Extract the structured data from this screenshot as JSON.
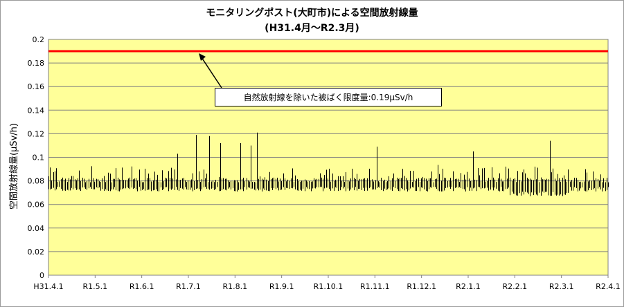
{
  "chart_data": {
    "type": "line",
    "title": "モニタリングポスト(大町市)による空間放射線量",
    "subtitle": "(H31.4月～R2.3月)",
    "ylabel": "空間放射線量(μSv/h)",
    "xlabel": "",
    "ylim": [
      0,
      0.2
    ],
    "yticks": [
      "0",
      "0.02",
      "0.04",
      "0.06",
      "0.08",
      "0.1",
      "0.12",
      "0.14",
      "0.16",
      "0.18",
      "0.2"
    ],
    "xticks": [
      "H31.4.1",
      "R1.5.1",
      "R1.6.1",
      "R1.7.1",
      "R1.8.1",
      "R1.9.1",
      "R1.10.1",
      "R1.11.1",
      "R1.12.1",
      "R2.1.1",
      "R2.2.1",
      "R2.3.1",
      "R2.4.1"
    ],
    "grid": true,
    "reference_line": {
      "value": 0.19,
      "color": "#ff0000"
    },
    "annotation": "自然放射線を除いた被ばく限度量:0.19μSv/h",
    "daily_range_summary": {
      "typical_min": 0.073,
      "typical_max": 0.08,
      "spikes": [
        {
          "date": "R1.6.24",
          "max": 0.103
        },
        {
          "date": "R1.7.6",
          "max": 0.119
        },
        {
          "date": "R1.7.15",
          "max": 0.118
        },
        {
          "date": "R1.7.22",
          "max": 0.112
        },
        {
          "date": "R1.8.4",
          "max": 0.112
        },
        {
          "date": "R1.8.11",
          "max": 0.11
        },
        {
          "date": "R1.8.15",
          "max": 0.121
        },
        {
          "date": "R1.11.1",
          "max": 0.109
        },
        {
          "date": "R2.1.3",
          "max": 0.105
        },
        {
          "date": "R2.2.22",
          "max": 0.114
        }
      ]
    },
    "colors": {
      "plot_bg": "#ffff99",
      "series": "#000000",
      "limit_line": "#ff0000",
      "grid": "#808080"
    }
  }
}
